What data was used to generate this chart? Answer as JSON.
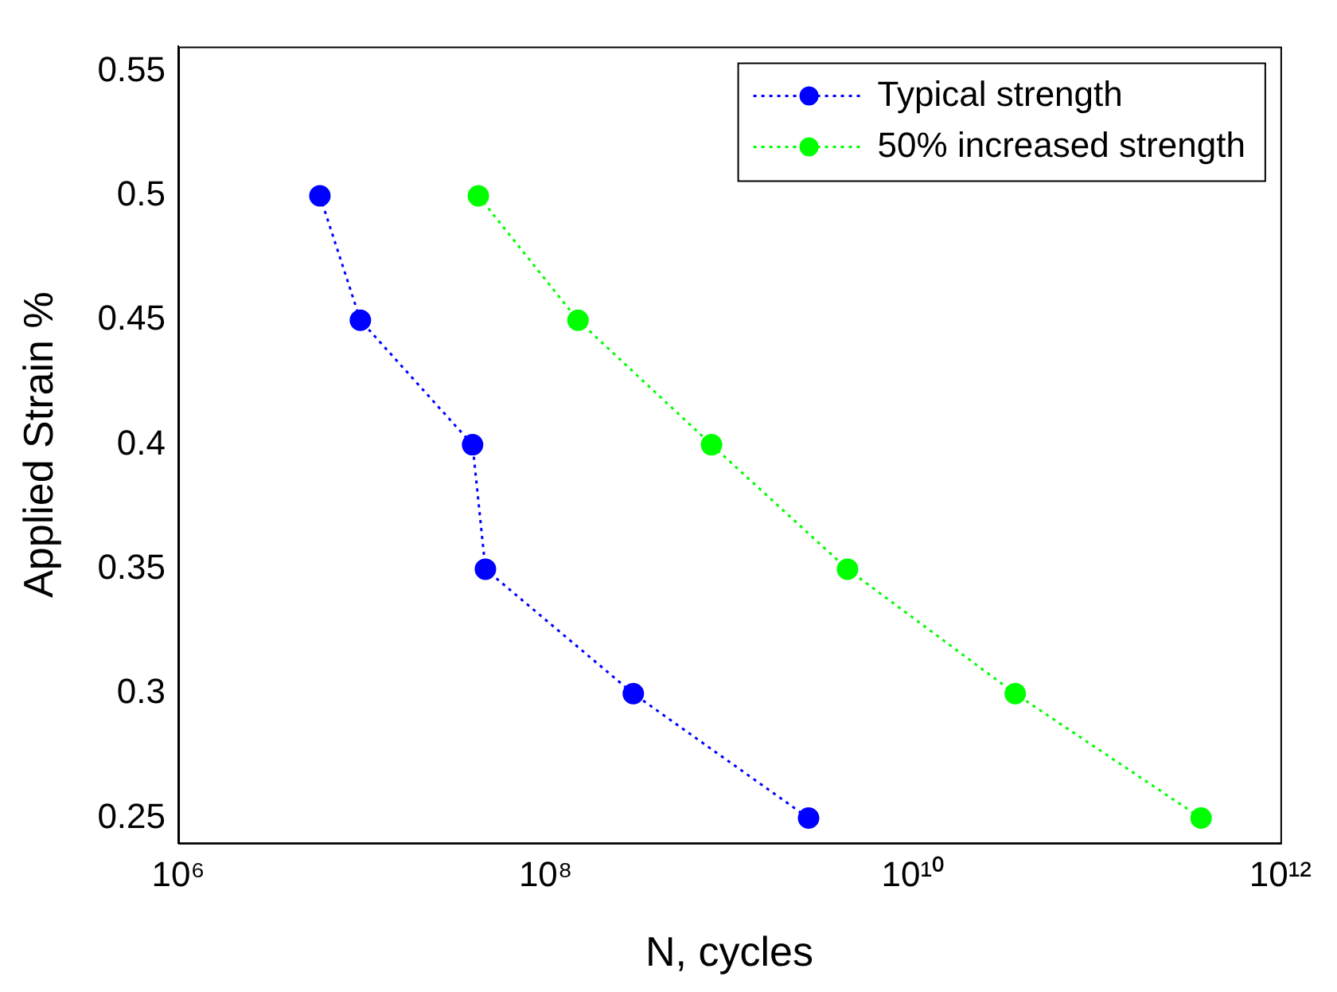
{
  "chart_data": {
    "type": "line",
    "xlabel": "N, cycles",
    "ylabel": "Applied Strain %",
    "log": "x",
    "xlim": [
      1000000,
      1000000000000
    ],
    "xticks": [
      {
        "value": 1000000,
        "label": "10⁶"
      },
      {
        "value": 100000000,
        "label": "10⁸"
      },
      {
        "value": 10000000000,
        "label": "10¹⁰"
      },
      {
        "value": 1000000000000,
        "label": "10¹²"
      }
    ],
    "ylim": [
      0.24,
      0.56
    ],
    "yticks": [
      0.25,
      0.3,
      0.35,
      0.4,
      0.45,
      0.5,
      0.55
    ],
    "grid": false,
    "legend": "top right",
    "marker": "circle",
    "line_style": "dotted",
    "series": [
      {
        "name": "Typical strength",
        "color": "#0000ff",
        "x": [
          5900000,
          9800000,
          40000000,
          47000000,
          300000000,
          2700000000
        ],
        "values": [
          0.5,
          0.45,
          0.4,
          0.35,
          0.3,
          0.25
        ]
      },
      {
        "name": "50% increased strength",
        "color": "#00ff00",
        "x": [
          43000000,
          150000000,
          800000000,
          4400000000,
          36000000000,
          370000000000
        ],
        "values": [
          0.5,
          0.45,
          0.4,
          0.35,
          0.3,
          0.25
        ]
      }
    ]
  }
}
